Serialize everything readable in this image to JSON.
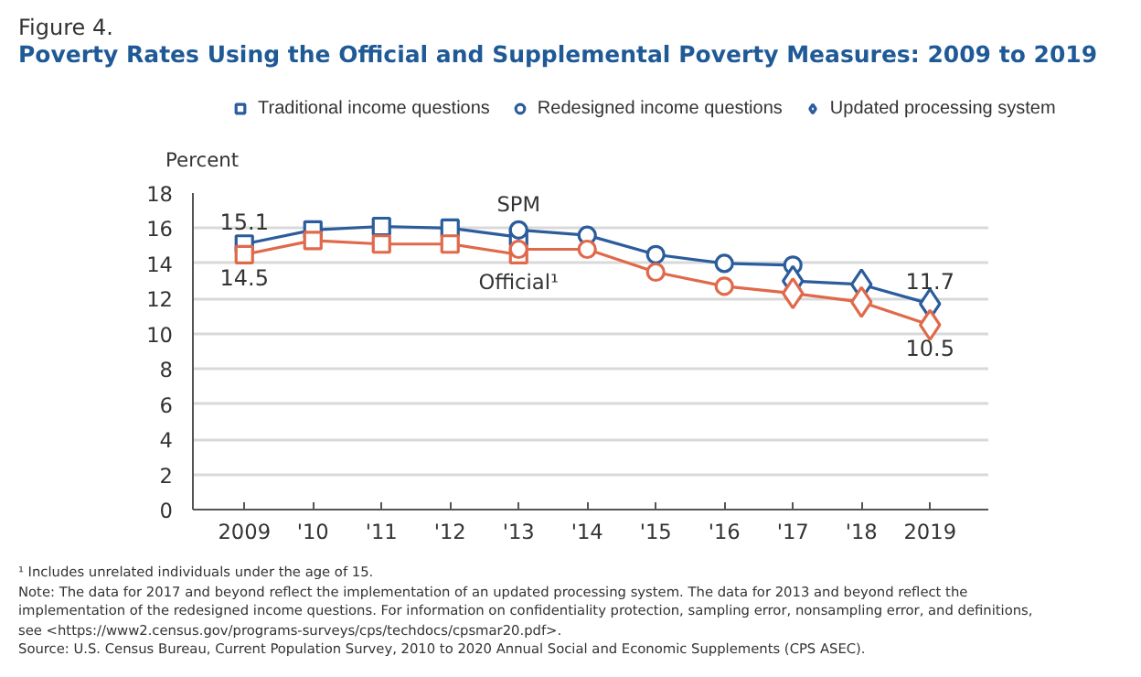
{
  "chart_data": {
    "type": "line",
    "subtitle": "Figure 4.",
    "title": "Poverty Rates Using the Official and Supplemental Poverty Measures: 2009 to 2019",
    "ylabel": "Percent",
    "xlim": [
      2008.25,
      2019.85
    ],
    "xticks": [
      {
        "value": 2009,
        "label": "2009"
      },
      {
        "value": 2010,
        "label": "'10"
      },
      {
        "value": 2011,
        "label": "'11"
      },
      {
        "value": 2012,
        "label": "'12"
      },
      {
        "value": 2013,
        "label": "'13"
      },
      {
        "value": 2014,
        "label": "'14"
      },
      {
        "value": 2015,
        "label": "'15"
      },
      {
        "value": 2016,
        "label": "'16"
      },
      {
        "value": 2017,
        "label": "'17"
      },
      {
        "value": 2018,
        "label": "'18"
      },
      {
        "value": 2019,
        "label": "2019"
      }
    ],
    "ylim": [
      0,
      18
    ],
    "yticks": [
      0,
      2,
      4,
      6,
      8,
      10,
      12,
      14,
      16,
      18
    ],
    "grid": "y",
    "legend": "top",
    "series": [
      {
        "name": "Traditional income questions",
        "color": "#2b5c9c",
        "marker": "square",
        "x": [
          2009,
          2010,
          2011,
          2012,
          2013
        ],
        "values": [
          15.1,
          15.9,
          16.1,
          16.0,
          15.5
        ],
        "value_labels": [
          "15.1",
          null,
          null,
          null,
          null
        ]
      },
      {
        "name": "Redesigned income questions",
        "color": "#2b5c9c",
        "marker": "circle",
        "x": [
          2013,
          2014,
          2015,
          2016,
          2017
        ],
        "values": [
          15.9,
          15.6,
          14.5,
          14.0,
          13.9
        ]
      },
      {
        "name": "Updated processing system",
        "color": "#2b5c9c",
        "marker": "diamond",
        "x": [
          2017,
          2018,
          2019
        ],
        "values": [
          13.0,
          12.8,
          11.7
        ],
        "value_labels": [
          null,
          null,
          "11.7"
        ]
      },
      {
        "color": "#e0694a",
        "marker": "square",
        "x": [
          2009,
          2010,
          2011,
          2012,
          2013
        ],
        "values": [
          14.5,
          15.3,
          15.1,
          15.1,
          14.5
        ],
        "value_labels": [
          "14.5",
          null,
          null,
          null,
          null
        ]
      },
      {
        "color": "#e0694a",
        "marker": "circle",
        "x": [
          2013,
          2014,
          2015,
          2016,
          2017
        ],
        "values": [
          14.8,
          14.8,
          13.5,
          12.7,
          12.3
        ]
      },
      {
        "color": "#e0694a",
        "marker": "diamond",
        "x": [
          2017,
          2018,
          2019
        ],
        "values": [
          12.3,
          11.8,
          10.5
        ],
        "value_labels": [
          null,
          null,
          "10.5"
        ]
      }
    ],
    "annotations": [
      {
        "text": "SPM",
        "x": 2013,
        "y": 15.9
      },
      {
        "text": "Official¹",
        "x": 2013,
        "y": 14.5
      },
      "¹ Includes unrelated individuals under the age of 15.",
      "Note: The data for 2017 and beyond reflect the implementation of an updated processing system. The data for 2013 and beyond reflect the",
      "implementation of the redesigned income questions. For information on confidentiality protection, sampling error, nonsampling error, and definitions,",
      "see <https://www2.census.gov/programs-surveys/cps/techdocs/cpsmar20.pdf>.",
      "Source: U.S. Census Bureau, Current Population Survey, 2010 to 2020 Annual Social and Economic Supplements (CPS ASEC)."
    ]
  }
}
